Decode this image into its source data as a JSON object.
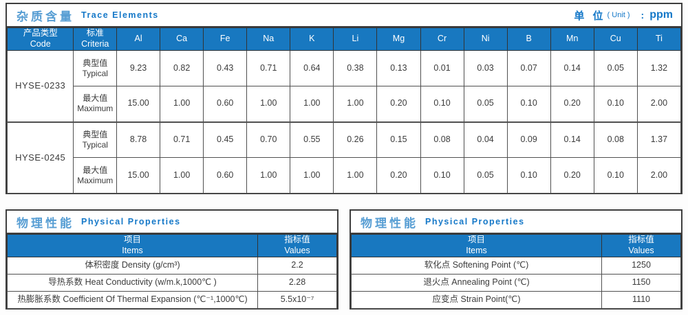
{
  "colors": {
    "header_bg": "#1878c0",
    "title_en_blue": "#1578c8",
    "title_cn_blue": "#569dd3",
    "border": "#3e3e3e"
  },
  "trace": {
    "title_cn": "杂质含量",
    "title_en": "Trace Elements",
    "unit_label": "单 位",
    "unit_paren": "( Unit )",
    "unit_colon": ":",
    "unit_value": "ppm",
    "headers": {
      "code_cn": "产品类型",
      "code_en": "Code",
      "criteria_cn": "标准",
      "criteria_en": "Criteria"
    },
    "elements": [
      "Al",
      "Ca",
      "Fe",
      "Na",
      "K",
      "Li",
      "Mg",
      "Cr",
      "Ni",
      "B",
      "Mn",
      "Cu",
      "Ti"
    ],
    "products": [
      {
        "code": "HYSE-0233",
        "rows": [
          {
            "criteria_cn": "典型值",
            "criteria_en": "Typical",
            "values": [
              "9.23",
              "0.82",
              "0.43",
              "0.71",
              "0.64",
              "0.38",
              "0.13",
              "0.01",
              "0.03",
              "0.07",
              "0.14",
              "0.05",
              "1.32"
            ]
          },
          {
            "criteria_cn": "最大值",
            "criteria_en": "Maximum",
            "values": [
              "15.00",
              "1.00",
              "0.60",
              "1.00",
              "1.00",
              "1.00",
              "0.20",
              "0.10",
              "0.05",
              "0.10",
              "0.20",
              "0.10",
              "2.00"
            ]
          }
        ]
      },
      {
        "code": "HYSE-0245",
        "rows": [
          {
            "criteria_cn": "典型值",
            "criteria_en": "Typical",
            "values": [
              "8.78",
              "0.71",
              "0.45",
              "0.70",
              "0.55",
              "0.26",
              "0.15",
              "0.08",
              "0.04",
              "0.09",
              "0.14",
              "0.08",
              "1.37"
            ]
          },
          {
            "criteria_cn": "最大值",
            "criteria_en": "Maximum",
            "values": [
              "15.00",
              "1.00",
              "0.60",
              "1.00",
              "1.00",
              "1.00",
              "0.20",
              "0.10",
              "0.05",
              "0.10",
              "0.20",
              "0.10",
              "2.00"
            ]
          }
        ]
      }
    ]
  },
  "physical_left": {
    "title_cn": "物理性能",
    "title_en": "Physical Properties",
    "headers": {
      "item_cn": "项目",
      "item_en": "Items",
      "value_cn": "指标值",
      "value_en": "Values"
    },
    "rows": [
      {
        "item": "体积密度 Density (g/cm³)",
        "value": "2.2"
      },
      {
        "item": "导热系数 Heat Conductivity (w/m.k,1000℃ )",
        "value": "2.28"
      },
      {
        "item": "热膨胀系数 Coefficient Of Thermal Expansion (℃⁻¹,1000℃)",
        "value": "5.5x10⁻⁷"
      }
    ]
  },
  "physical_right": {
    "title_cn": "物理性能",
    "title_en": "Physical Properties",
    "headers": {
      "item_cn": "项目",
      "item_en": "Items",
      "value_cn": "指标值",
      "value_en": "Values"
    },
    "rows": [
      {
        "item": "软化点 Softening Point (℃)",
        "value": "1250"
      },
      {
        "item": "退火点 Annealing Point (℃)",
        "value": "1150"
      },
      {
        "item": "应变点 Strain Point(℃)",
        "value": "1110"
      }
    ]
  }
}
